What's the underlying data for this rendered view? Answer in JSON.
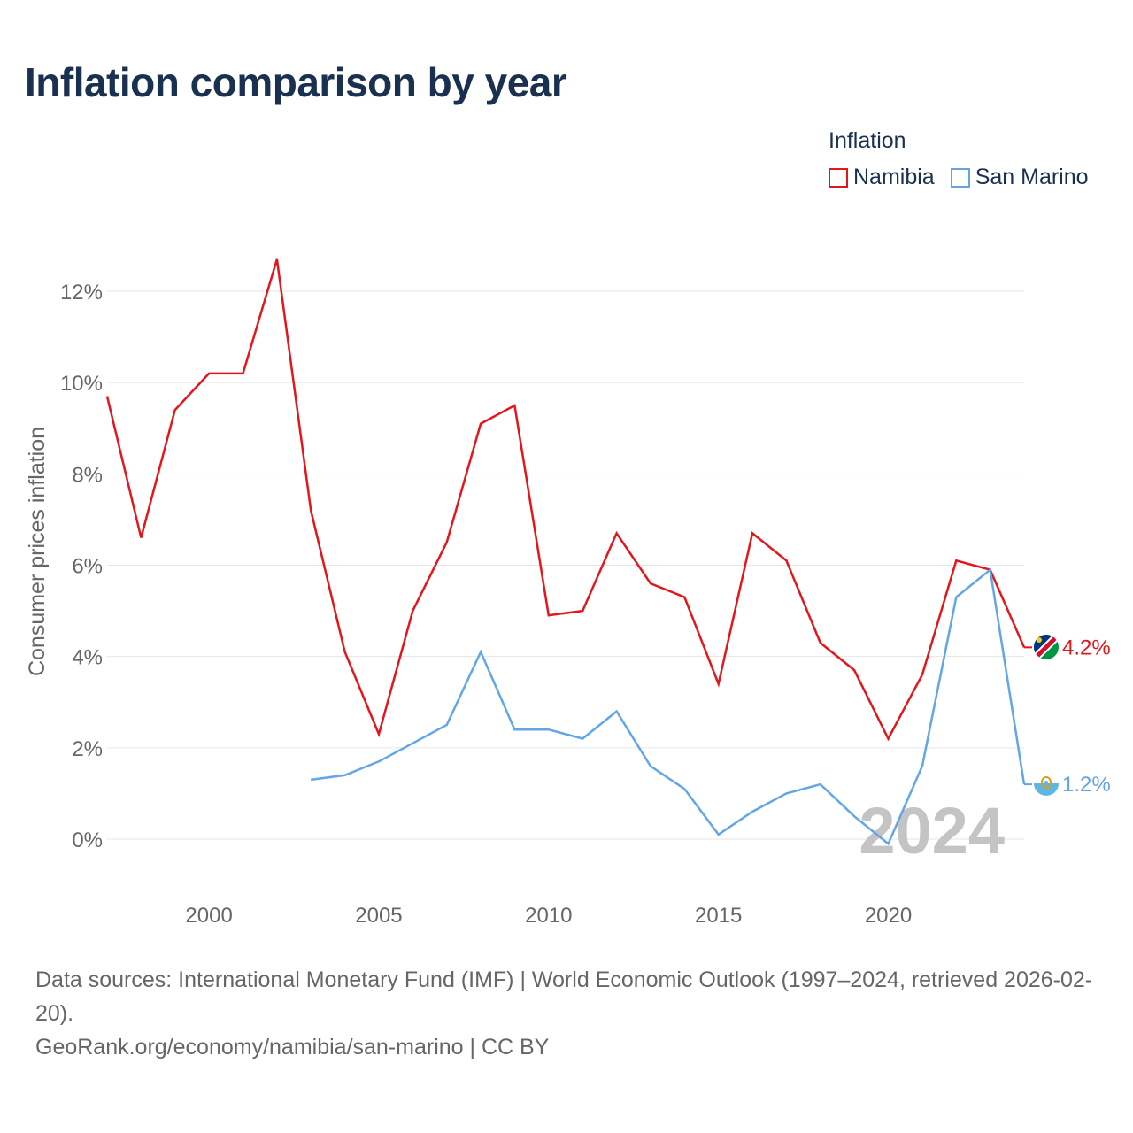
{
  "title": "Inflation comparison by year",
  "legend": {
    "title": "Inflation",
    "items": [
      {
        "label": "Namibia",
        "color": "#e3161c"
      },
      {
        "label": "San Marino",
        "color": "#62a6e5"
      }
    ]
  },
  "chart_data": {
    "type": "line",
    "title": "Inflation comparison by year",
    "ylabel": "Consumer prices inflation",
    "xlabel": "",
    "xlim": [
      1997,
      2024
    ],
    "ylim": [
      -2,
      13
    ],
    "yticks": [
      0,
      2,
      4,
      6,
      8,
      10,
      12
    ],
    "ytick_labels": [
      "0%",
      "2%",
      "4%",
      "6%",
      "8%",
      "10%",
      "12%"
    ],
    "xticks": [
      2000,
      2005,
      2010,
      2015,
      2020
    ],
    "xtick_labels": [
      "2000",
      "2005",
      "2010",
      "2015",
      "2020"
    ],
    "watermark_year": "2024",
    "series": [
      {
        "name": "Namibia",
        "color": "#e3161c",
        "end_label": "4.2%",
        "flag": "namibia-flag",
        "x": [
          1997,
          1998,
          1999,
          2000,
          2001,
          2002,
          2003,
          2004,
          2005,
          2006,
          2007,
          2008,
          2009,
          2010,
          2011,
          2012,
          2013,
          2014,
          2015,
          2016,
          2017,
          2018,
          2019,
          2020,
          2021,
          2022,
          2023,
          2024
        ],
        "values": [
          9.7,
          6.6,
          9.4,
          10.2,
          10.2,
          12.7,
          7.2,
          4.1,
          2.3,
          5.0,
          6.5,
          9.1,
          9.5,
          4.9,
          5.0,
          6.7,
          5.6,
          5.3,
          3.4,
          6.7,
          6.1,
          4.3,
          3.7,
          2.2,
          3.6,
          6.1,
          5.9,
          4.2
        ]
      },
      {
        "name": "San Marino",
        "color": "#62a6e5",
        "end_label": "1.2%",
        "flag": "san-marino-flag",
        "x": [
          2003,
          2004,
          2005,
          2006,
          2007,
          2008,
          2009,
          2010,
          2011,
          2012,
          2013,
          2014,
          2015,
          2016,
          2017,
          2018,
          2019,
          2020,
          2021,
          2022,
          2023,
          2024
        ],
        "values": [
          1.3,
          1.4,
          1.7,
          2.1,
          2.5,
          4.1,
          2.4,
          2.4,
          2.2,
          2.8,
          1.6,
          1.1,
          0.1,
          0.6,
          1.0,
          1.2,
          0.5,
          -0.1,
          1.6,
          5.3,
          5.9,
          1.2
        ]
      }
    ]
  },
  "footer": {
    "sources": "Data sources: International Monetary Fund (IMF) | World Economic Outlook (1997–2024, retrieved 2026-02-20).",
    "attribution": "GeoRank.org/economy/namibia/san-marino | CC BY"
  }
}
